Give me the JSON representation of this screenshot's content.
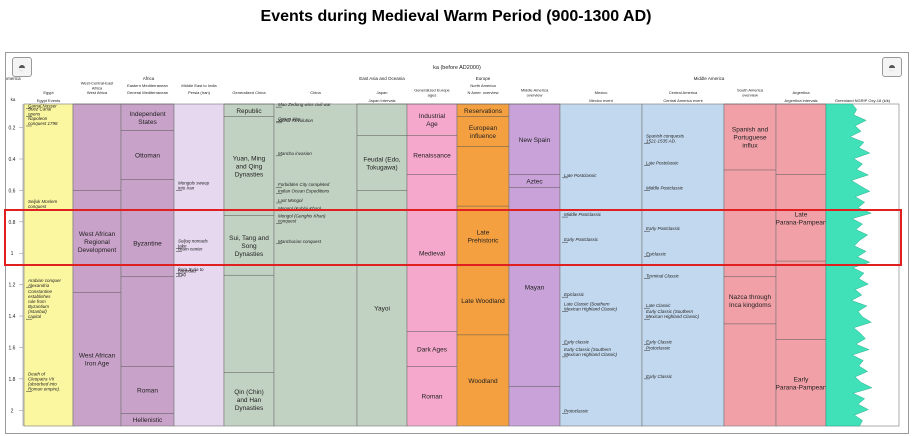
{
  "title": "Events during Medieval Warm Period (900-1300 AD)",
  "timescale": {
    "label": "ka (before AD2000)",
    "axis_label": "ka",
    "ticks": [
      "0.2",
      "0.4",
      "0.6",
      "0.8",
      "1",
      "1.2",
      "1.4",
      "1.6",
      "1.8",
      "2"
    ],
    "tick_values": [
      0.2,
      0.4,
      0.6,
      0.8,
      1.0,
      1.2,
      1.4,
      1.6,
      1.8,
      2.0
    ],
    "range": [
      0.05,
      2.1
    ]
  },
  "logo_icon": "timescale-creator-logo",
  "highlight": {
    "from": 0.7,
    "to": 1.1,
    "color": "#e02020"
  },
  "regions": [
    {
      "label": "Africa",
      "span": [
        1,
        3
      ]
    },
    {
      "label": "East Asia and Oceania",
      "span": [
        6,
        6
      ]
    },
    {
      "label": "Europe",
      "span": [
        8,
        8
      ]
    },
    {
      "label": "Middle America",
      "span": [
        11,
        12
      ]
    },
    {
      "label": "South America",
      "span": [
        14,
        15
      ]
    }
  ],
  "columns": [
    {
      "h1": "",
      "h2": "Egypt",
      "h3": "Egypt Events",
      "color": "#fbf7a0",
      "blocks": [],
      "events": [
        {
          "t": 0.08,
          "text": "Gamal Nasser"
        },
        {
          "t": 0.13,
          "text": "Suez Canal opens"
        },
        {
          "t": 0.19,
          "text": "Napoleon conquest 1798"
        },
        {
          "t": 0.72,
          "text": "Seljuk Moslem conquest"
        },
        {
          "t": 1.22,
          "text": "Arabian conquer Alexandria"
        },
        {
          "t": 1.42,
          "text": "Constantine establishes rule from Byzantium (Istanbul) capital"
        },
        {
          "t": 1.88,
          "text": "Death of Cleopatra VII (absorbed into Roman empire)."
        }
      ]
    },
    {
      "h1": "West-Central-East Africa",
      "h2": "West Africa",
      "h3": "",
      "color": "#c8a2c8",
      "blocks": [
        {
          "from": 0.05,
          "to": 0.6,
          "text": ""
        },
        {
          "from": 0.6,
          "to": 1.25,
          "text": "West African Regional Development"
        },
        {
          "from": 1.25,
          "to": 2.1,
          "text": "West African Iron Age"
        }
      ],
      "events": []
    },
    {
      "h1": "Eastern Mediterranean",
      "h2": "General Mediterranean",
      "h3": "",
      "color": "#c8a2c8",
      "blocks": [
        {
          "from": 0.05,
          "to": 0.22,
          "text": "Independent States"
        },
        {
          "from": 0.22,
          "to": 0.53,
          "text": "Ottoman"
        },
        {
          "from": 0.53,
          "to": 0.72,
          "text": ""
        },
        {
          "from": 0.72,
          "to": 1.15,
          "text": "Byzantine"
        },
        {
          "from": 1.15,
          "to": 1.72,
          "text": ""
        },
        {
          "from": 1.72,
          "to": 2.02,
          "text": "Roman"
        },
        {
          "from": 2.02,
          "to": 2.1,
          "text": "Hellenistic"
        }
      ],
      "events": []
    },
    {
      "h1": "Middle East to India",
      "h2": "Persia (Iran)",
      "h3": "",
      "color": "#e6d8ef",
      "blocks": [],
      "events": [
        {
          "t": 0.6,
          "text": "Mongols sweep into Iran"
        },
        {
          "t": 0.99,
          "text": "Islam center"
        },
        {
          "t": 0.97,
          "text": "Seljuq nomads take"
        },
        {
          "t": 1.13,
          "text": "Baghdad"
        },
        {
          "t": 1.15,
          "text": "from Syria to Iraq"
        }
      ]
    },
    {
      "h1": "",
      "h2": "Generalized China",
      "h3": "",
      "color": "#c2d2c2",
      "blocks": [
        {
          "from": 0.05,
          "to": 0.13,
          "text": "Republic"
        },
        {
          "from": 0.13,
          "to": 0.76,
          "text": "Yuan, Ming and Qing Dynasties"
        },
        {
          "from": 0.76,
          "to": 1.14,
          "text": "Sui, Tang and Song Dynasties"
        },
        {
          "from": 1.14,
          "to": 1.76,
          "text": ""
        },
        {
          "from": 1.76,
          "to": 2.1,
          "text": "Qin (Chin) and Han Dynasties"
        }
      ],
      "events": []
    },
    {
      "h1": "",
      "h2": "China",
      "h3": "",
      "color": "#c2d2c2",
      "blocks": [],
      "events": [
        {
          "t": 0.07,
          "text": "Mao Zedong wins civil war"
        },
        {
          "t": 0.16,
          "text": "Opium War"
        },
        {
          "t": 0.17,
          "text": "Xinhai Revolution"
        },
        {
          "t": 0.38,
          "text": "Manchu invasion"
        },
        {
          "t": 0.58,
          "text": "Forbidden City completed"
        },
        {
          "t": 0.62,
          "text": "Indian Ocean Expeditions"
        },
        {
          "t": 0.68,
          "text": "Last Mongol"
        },
        {
          "t": 0.73,
          "text": "Mongol (Kublai Khan)"
        },
        {
          "t": 0.81,
          "text": "Mongol (Genghis Khan) conquest"
        },
        {
          "t": 0.94,
          "text": "Manchurian conquest"
        }
      ]
    },
    {
      "h1": "",
      "h2": "Japan",
      "h3": "Japan intervals",
      "color": "#c2d2c2",
      "blocks": [
        {
          "from": 0.05,
          "to": 0.25,
          "text": ""
        },
        {
          "from": 0.25,
          "to": 0.6,
          "text": "Feudal (Edo, Tokugawa)"
        },
        {
          "from": 0.6,
          "to": 2.1,
          "text": "Yayoi"
        }
      ],
      "events": []
    },
    {
      "h1": "",
      "h2": "Generalized Europe ages",
      "h3": "",
      "color": "#f5a8cc",
      "blocks": [
        {
          "from": 0.05,
          "to": 0.25,
          "text": "Industrial Age"
        },
        {
          "from": 0.25,
          "to": 0.5,
          "text": "Renaissance"
        },
        {
          "from": 0.5,
          "to": 1.5,
          "text": "Medieval"
        },
        {
          "from": 1.5,
          "to": 1.72,
          "text": "Dark Ages"
        },
        {
          "from": 1.72,
          "to": 2.1,
          "text": "Roman"
        }
      ],
      "events": []
    },
    {
      "h1": "North America",
      "h2": "N Amer. overview",
      "h3": "",
      "color": "#f5a040",
      "blocks": [
        {
          "from": 0.05,
          "to": 0.13,
          "text": "Reservations"
        },
        {
          "from": 0.13,
          "to": 0.32,
          "text": "European influence"
        },
        {
          "from": 0.32,
          "to": 0.7,
          "text": ""
        },
        {
          "from": 0.7,
          "to": 1.08,
          "text": "Late Prehistoric"
        },
        {
          "from": 1.08,
          "to": 1.52,
          "text": "Late Woodland"
        },
        {
          "from": 1.52,
          "to": 2.1,
          "text": "Woodland"
        }
      ],
      "events": []
    },
    {
      "h1": "",
      "h2": "Middle America overview",
      "h3": "",
      "color": "#c8a2d8",
      "blocks": [
        {
          "from": 0.05,
          "to": 0.5,
          "text": "New Spain"
        },
        {
          "from": 0.5,
          "to": 0.58,
          "text": "Aztec"
        },
        {
          "from": 0.58,
          "to": 1.85,
          "text": "Mayan"
        },
        {
          "from": 1.85,
          "to": 2.1,
          "text": ""
        }
      ],
      "events": []
    },
    {
      "h1": "",
      "h2": "Mexico",
      "h3": "Mexico event",
      "color": "#c2d8ee",
      "blocks": [],
      "events": [
        {
          "t": 0.52,
          "text": "Late Postclassic"
        },
        {
          "t": 0.77,
          "text": "Middle Postclassic"
        },
        {
          "t": 0.93,
          "text": "Early Postclassic"
        },
        {
          "t": 1.28,
          "text": "Epiclassic"
        },
        {
          "t": 1.37,
          "text": "Late Classic (Southern Mexican Highland Classic)"
        },
        {
          "t": 1.58,
          "text": "Early classic"
        },
        {
          "t": 1.66,
          "text": "Early Classic (Southern Mexican Highland Classic)"
        },
        {
          "t": 2.02,
          "text": "Protoclassic"
        }
      ]
    },
    {
      "h1": "",
      "h2": "Central America",
      "h3": "Central America event",
      "color": "#c2d8ee",
      "blocks": [],
      "events": [
        {
          "t": 0.3,
          "text": "Spanish conquests 1521-1535 AD."
        },
        {
          "t": 0.44,
          "text": "Late Postclassic"
        },
        {
          "t": 0.6,
          "text": "Middle Postclassic"
        },
        {
          "t": 0.86,
          "text": "Early Postclassic"
        },
        {
          "t": 1.02,
          "text": "Epiclassic"
        },
        {
          "t": 1.16,
          "text": "Terminal Classic"
        },
        {
          "t": 1.35,
          "text": "Late Classic"
        },
        {
          "t": 1.58,
          "text": "Early Classic"
        },
        {
          "t": 1.42,
          "text": "Early Classic (Southern Mexican Highland Classic)"
        },
        {
          "t": 1.62,
          "text": "Protoclassic"
        },
        {
          "t": 1.8,
          "text": "Early Classic"
        }
      ]
    },
    {
      "h1": "",
      "h2": "South America overview",
      "h3": "",
      "color": "#f2a0a8",
      "blocks": [
        {
          "from": 0.05,
          "to": 0.47,
          "text": "Spanish and Portuguese influx"
        },
        {
          "from": 0.47,
          "to": 1.15,
          "text": ""
        },
        {
          "from": 1.15,
          "to": 1.45,
          "text": "Nazca through Inca kingdoms"
        },
        {
          "from": 1.45,
          "to": 2.1,
          "text": ""
        }
      ],
      "events": []
    },
    {
      "h1": "",
      "h2": "Argentina",
      "h3": "Argentina intervals",
      "color": "#f2a0a8",
      "blocks": [
        {
          "from": 0.05,
          "to": 0.5,
          "text": ""
        },
        {
          "from": 0.5,
          "to": 1.05,
          "text": "Late Parana-Pampean"
        },
        {
          "from": 1.05,
          "to": 1.55,
          "text": ""
        },
        {
          "from": 1.55,
          "to": 2.1,
          "text": "Early Parana-Pampean"
        }
      ],
      "events": []
    },
    {
      "h1": "",
      "h2": "",
      "h3": "Greenland NGRIP Oxy-18 (k/k)",
      "color": "#40e0b8",
      "blocks": [],
      "events": []
    }
  ],
  "ngrip_curve": [
    0.36,
    0.42,
    0.38,
    0.55,
    0.4,
    0.48,
    0.33,
    0.52,
    0.45,
    0.6,
    0.38,
    0.5,
    0.42,
    0.58,
    0.35,
    0.47,
    0.6,
    0.4,
    0.53,
    0.44,
    0.62,
    0.36,
    0.5,
    0.41,
    0.57,
    0.46,
    0.39,
    0.55,
    0.43,
    0.6,
    0.37,
    0.52,
    0.45,
    0.58,
    0.4,
    0.49,
    0.35,
    0.56,
    0.44,
    0.5,
    0.62,
    0.38,
    0.47,
    0.54,
    0.41,
    0.59,
    0.36,
    0.51,
    0.45,
    0.57,
    0.4,
    0.48,
    0.63,
    0.37,
    0.53,
    0.44,
    0.58,
    0.39,
    0.5,
    0.46
  ]
}
